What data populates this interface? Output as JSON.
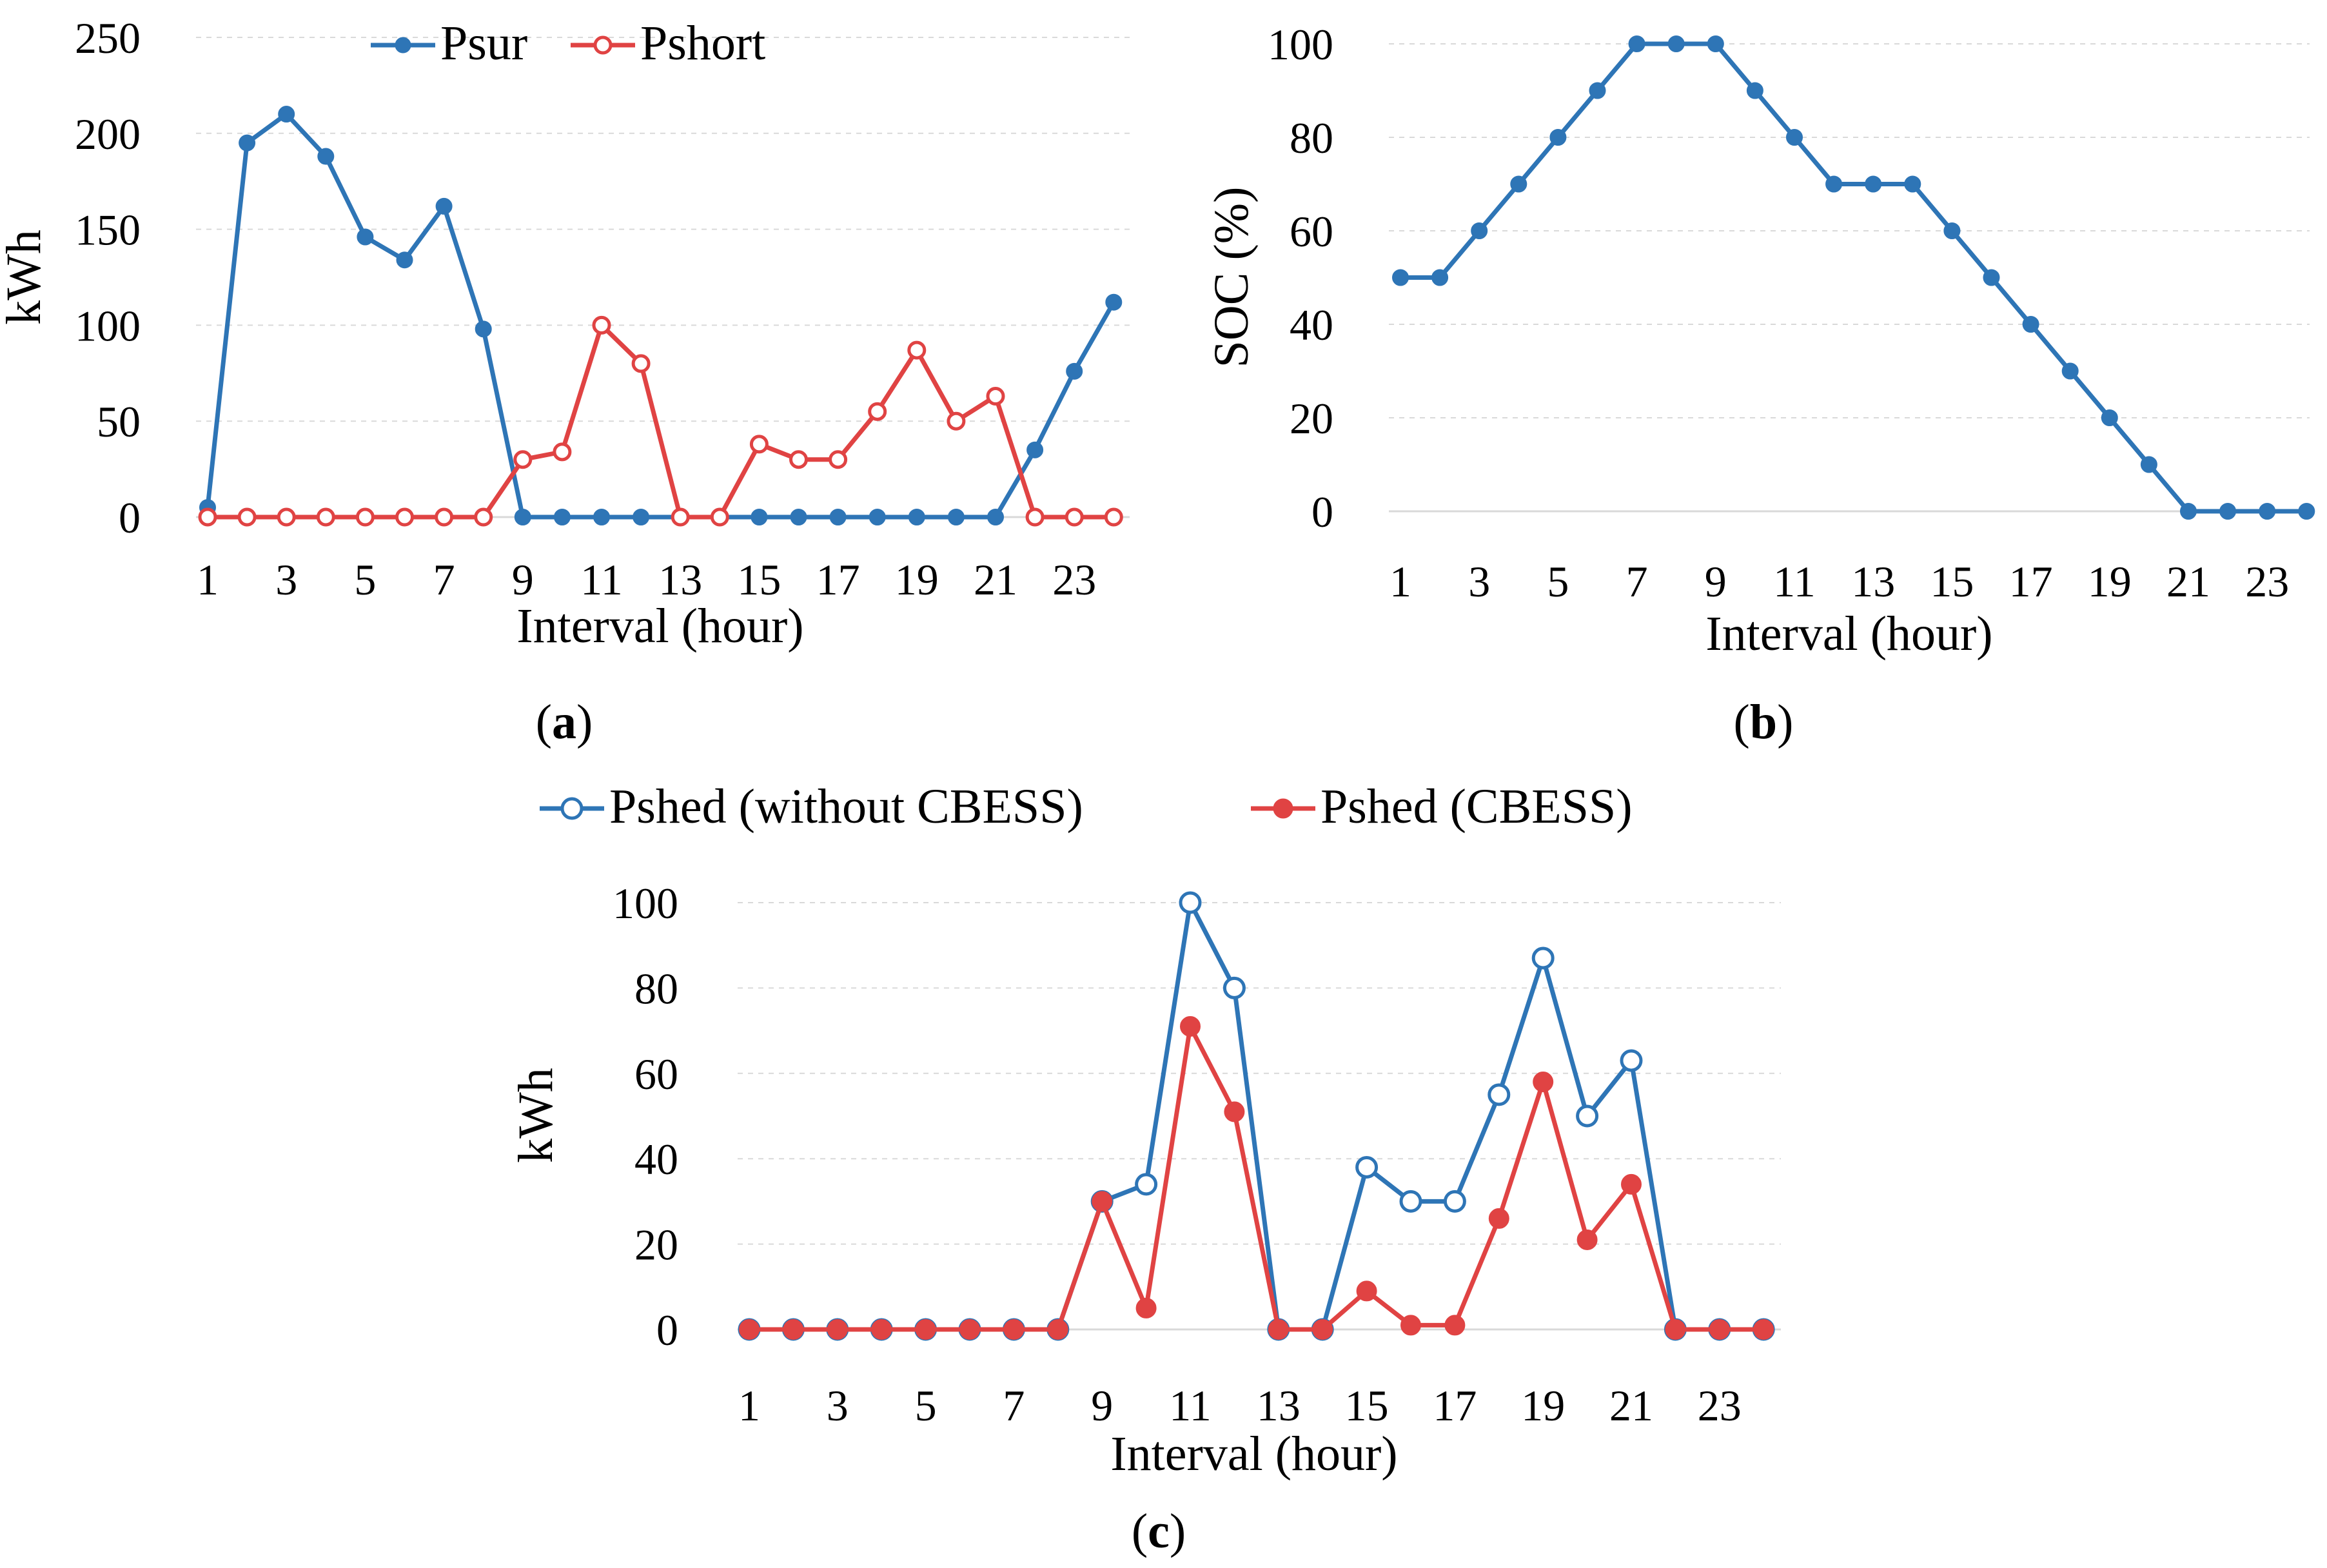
{
  "colors": {
    "blue": "#2e75b6",
    "red": "#e04343"
  },
  "captions": {
    "a_paren_open": "(",
    "a_letter": "a",
    "a_paren_close": ")",
    "b_paren_open": "(",
    "b_letter": "b",
    "b_paren_close": ")",
    "c_paren_open": "(",
    "c_letter": "c",
    "c_paren_close": ")"
  },
  "chart_data": [
    {
      "id": "a",
      "type": "line",
      "xlabel": "Interval (hour)",
      "ylabel": "kWh",
      "x": [
        1,
        2,
        3,
        4,
        5,
        6,
        7,
        8,
        9,
        10,
        11,
        12,
        13,
        14,
        15,
        16,
        17,
        18,
        19,
        20,
        21,
        22,
        23,
        24
      ],
      "xticks": [
        "1",
        "3",
        "5",
        "7",
        "9",
        "11",
        "13",
        "15",
        "17",
        "19",
        "21",
        "23"
      ],
      "ylim": [
        0,
        250
      ],
      "yticks": [
        "0",
        "50",
        "100",
        "150",
        "200",
        "250"
      ],
      "grid": true,
      "legend": "top-center",
      "series": [
        {
          "name": "Psur",
          "marker": "filled",
          "color": "#2e75b6",
          "values": [
            5,
            195,
            210,
            188,
            146,
            134,
            162,
            98,
            0,
            0,
            0,
            0,
            0,
            0,
            0,
            0,
            0,
            0,
            0,
            0,
            0,
            35,
            76,
            112
          ]
        },
        {
          "name": "Pshort",
          "marker": "hollow",
          "color": "#e04343",
          "values": [
            0,
            0,
            0,
            0,
            0,
            0,
            0,
            0,
            30,
            34,
            100,
            80,
            0,
            0,
            38,
            30,
            30,
            55,
            87,
            50,
            63,
            0,
            0,
            0
          ]
        }
      ]
    },
    {
      "id": "b",
      "type": "line",
      "xlabel": "Interval (hour)",
      "ylabel": "SOC (%)",
      "x": [
        1,
        2,
        3,
        4,
        5,
        6,
        7,
        8,
        9,
        10,
        11,
        12,
        13,
        14,
        15,
        16,
        17,
        18,
        19,
        20,
        21,
        22,
        23,
        24
      ],
      "xticks": [
        "1",
        "3",
        "5",
        "7",
        "9",
        "11",
        "13",
        "15",
        "17",
        "19",
        "21",
        "23"
      ],
      "ylim": [
        0,
        100
      ],
      "yticks": [
        "0",
        "20",
        "40",
        "60",
        "80",
        "100"
      ],
      "grid": true,
      "series": [
        {
          "name": "SOC",
          "marker": "filled",
          "color": "#2e75b6",
          "values": [
            50,
            50,
            60,
            70,
            80,
            90,
            100,
            100,
            100,
            90,
            80,
            70,
            70,
            70,
            60,
            50,
            40,
            30,
            20,
            10,
            0,
            0,
            0,
            0
          ]
        }
      ]
    },
    {
      "id": "c",
      "type": "line",
      "xlabel": "Interval (hour)",
      "ylabel": "kWh",
      "x": [
        1,
        2,
        3,
        4,
        5,
        6,
        7,
        8,
        9,
        10,
        11,
        12,
        13,
        14,
        15,
        16,
        17,
        18,
        19,
        20,
        21,
        22,
        23,
        24
      ],
      "xticks": [
        "1",
        "3",
        "5",
        "7",
        "9",
        "11",
        "13",
        "15",
        "17",
        "19",
        "21",
        "23"
      ],
      "ylim": [
        0,
        100
      ],
      "yticks": [
        "0",
        "20",
        "40",
        "60",
        "80",
        "100"
      ],
      "grid": true,
      "legend": "top-center",
      "series": [
        {
          "name": "Pshed (without CBESS)",
          "marker": "hollow",
          "color": "#2e75b6",
          "values": [
            0,
            0,
            0,
            0,
            0,
            0,
            0,
            0,
            30,
            34,
            100,
            80,
            0,
            0,
            38,
            30,
            30,
            55,
            87,
            50,
            63,
            0,
            0,
            0
          ]
        },
        {
          "name": "Pshed (CBESS)",
          "marker": "filled",
          "color": "#e04343",
          "values": [
            0,
            0,
            0,
            0,
            0,
            0,
            0,
            0,
            30,
            5,
            71,
            51,
            0,
            0,
            9,
            1,
            1,
            26,
            58,
            21,
            34,
            0,
            0,
            0
          ]
        }
      ]
    }
  ]
}
